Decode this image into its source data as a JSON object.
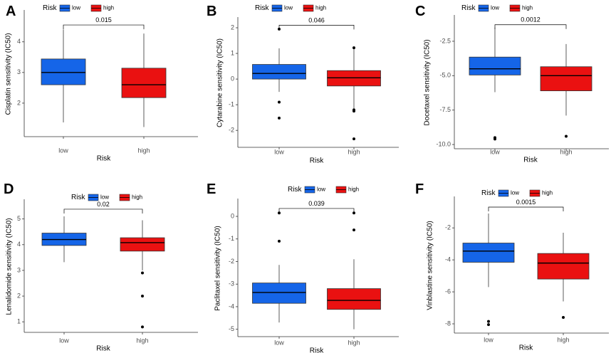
{
  "colors": {
    "low": "#1565e8",
    "high": "#ea1111",
    "outlier": "#000000",
    "axis": "#333333"
  },
  "chart_data": [
    {
      "type": "boxplot",
      "panel": "A",
      "legend_title": "Risk",
      "categories": [
        "low",
        "high"
      ],
      "xlabel": "Risk",
      "ylabel": "Cisplatin sensitivity (IC50)",
      "ylim": [
        1.0,
        4.9
      ],
      "yticks": [
        2,
        3,
        4
      ],
      "boxes": [
        {
          "group": "low",
          "min": 1.37,
          "q1": 2.6,
          "median": 3.0,
          "q3": 3.44,
          "max": 4.4,
          "outliers": []
        },
        {
          "group": "high",
          "min": 1.22,
          "q1": 2.18,
          "median": 2.6,
          "q3": 3.14,
          "max": 4.27,
          "outliers": []
        }
      ],
      "pvalue": "0.015",
      "bracket_y": 4.55
    },
    {
      "type": "boxplot",
      "panel": "B",
      "legend_title": "Risk",
      "categories": [
        "low",
        "high"
      ],
      "xlabel": "Risk",
      "ylabel": "Cytarabine sensitivity (IC50)",
      "ylim": [
        -2.55,
        2.25
      ],
      "yticks": [
        -2,
        -1,
        0,
        1,
        2
      ],
      "boxes": [
        {
          "group": "low",
          "min": -0.5,
          "q1": 0.0,
          "median": 0.22,
          "q3": 0.57,
          "max": 1.2,
          "outliers": [
            1.95,
            -0.9,
            -1.52
          ]
        },
        {
          "group": "high",
          "min": -1.15,
          "q1": -0.27,
          "median": 0.05,
          "q3": 0.33,
          "max": 1.22,
          "outliers": [
            1.22,
            -1.2,
            -1.25,
            -2.33
          ]
        }
      ],
      "pvalue": "0.046",
      "bracket_y": 2.1
    },
    {
      "type": "boxplot",
      "panel": "C",
      "legend_title": "Risk",
      "categories": [
        "low",
        "high"
      ],
      "xlabel": "Risk",
      "ylabel": "Docetaxel sensitivity (IC50)",
      "ylim": [
        -10.1,
        -0.9
      ],
      "yticks": [
        -10.0,
        -7.5,
        -5.0,
        -2.5
      ],
      "yticklabels": [
        "-10.0",
        "-7.5",
        "-5.0",
        "-2.5"
      ],
      "boxes": [
        {
          "group": "low",
          "min": -6.2,
          "q1": -4.95,
          "median": -4.5,
          "q3": -3.65,
          "max": -1.5,
          "outliers": [
            -9.5,
            -9.6
          ]
        },
        {
          "group": "high",
          "min": -7.9,
          "q1": -6.1,
          "median": -5.0,
          "q3": -4.35,
          "max": -2.7,
          "outliers": [
            -9.4
          ]
        }
      ],
      "pvalue": "0.0012",
      "bracket_y": -1.3
    },
    {
      "type": "boxplot",
      "panel": "D",
      "legend_title": "Risk",
      "categories": [
        "low",
        "high"
      ],
      "xlabel": "Risk",
      "ylabel": "Lenalidomide sensitivity (IC50)",
      "ylim": [
        0.7,
        5.6
      ],
      "yticks": [
        1,
        2,
        3,
        4,
        5
      ],
      "boxes": [
        {
          "group": "low",
          "min": 3.32,
          "q1": 3.97,
          "median": 4.2,
          "q3": 4.45,
          "max": 5.1,
          "outliers": []
        },
        {
          "group": "high",
          "min": 3.0,
          "q1": 3.75,
          "median": 4.08,
          "q3": 4.27,
          "max": 4.95,
          "outliers": [
            2.9,
            2.0,
            0.8
          ]
        }
      ],
      "pvalue": "0.02",
      "bracket_y": 5.38
    },
    {
      "type": "boxplot",
      "panel": "E",
      "legend_title": "Risk",
      "categories": [
        "low",
        "high"
      ],
      "xlabel": "Risk",
      "ylabel": "Paclitaxel sensitivity (IC50)",
      "ylim": [
        -5.2,
        0.6
      ],
      "yticks": [
        -5,
        -4,
        -3,
        -2,
        -1,
        0
      ],
      "boxes": [
        {
          "group": "low",
          "min": -4.7,
          "q1": -3.85,
          "median": -3.37,
          "q3": -2.95,
          "max": -2.15,
          "outliers": [
            0.15,
            -1.1
          ]
        },
        {
          "group": "high",
          "min": -5.0,
          "q1": -4.12,
          "median": -3.72,
          "q3": -3.2,
          "max": -1.9,
          "outliers": [
            0.15,
            -0.6
          ]
        }
      ],
      "pvalue": "0.039",
      "bracket_y": 0.35
    },
    {
      "type": "boxplot",
      "panel": "F",
      "legend_title": "Risk",
      "categories": [
        "low",
        "high"
      ],
      "xlabel": "Risk",
      "ylabel": "Vinblastine sensitivity (IC50)",
      "ylim": [
        -8.4,
        -0.3
      ],
      "yticks": [
        -8,
        -6,
        -4,
        -2
      ],
      "boxes": [
        {
          "group": "low",
          "min": -5.7,
          "q1": -4.15,
          "median": -3.45,
          "q3": -2.95,
          "max": -1.1,
          "outliers": [
            -7.85,
            -8.05
          ]
        },
        {
          "group": "high",
          "min": -6.6,
          "q1": -5.2,
          "median": -4.2,
          "q3": -3.6,
          "max": -2.3,
          "outliers": [
            -7.6
          ]
        }
      ],
      "pvalue": "0.0015",
      "bracket_y": -0.7
    }
  ]
}
